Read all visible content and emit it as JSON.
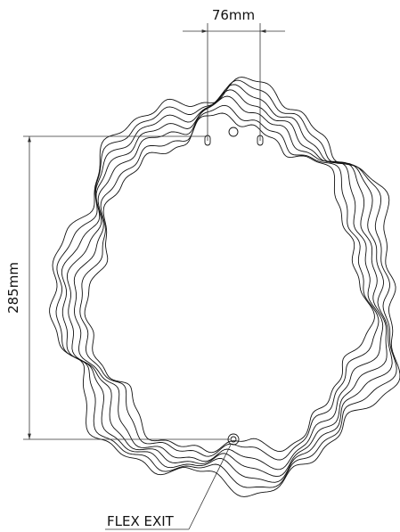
{
  "dimensions": {
    "width_label": "76mm",
    "height_label": "285mm"
  },
  "callout": {
    "label": "FLEX EXIT"
  }
}
